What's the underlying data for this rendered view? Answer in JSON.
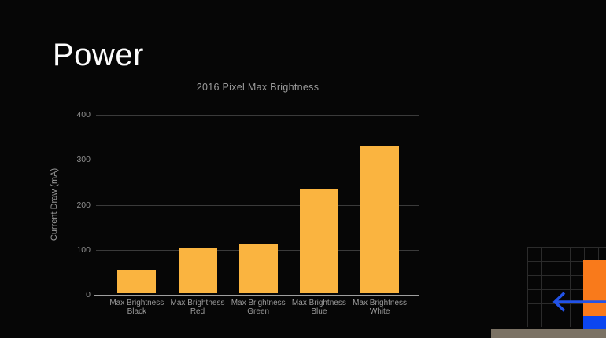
{
  "slide": {
    "title": "Power",
    "background_color": "#060606"
  },
  "chart_data": {
    "type": "bar",
    "title": "2016 Pixel Max Brightness",
    "xlabel": "",
    "ylabel": "Current Draw (mA)",
    "categories": [
      "Max Brightness\nBlack",
      "Max Brightness\nRed",
      "Max Brightness\nGreen",
      "Max Brightness\nBlue",
      "Max Brightness\nWhite"
    ],
    "values": [
      55,
      105,
      113,
      235,
      330
    ],
    "ylim": [
      0,
      400
    ],
    "yticks": [
      0,
      100,
      200,
      300,
      400
    ],
    "grid": true,
    "legend": false,
    "bar_color": "#FAB440",
    "gridline_color": "#3a3a3a",
    "axis_color": "#9e9e9e",
    "tick_label_color": "#8f8f8f"
  },
  "decorations": {
    "grid_pattern_color": "#2b2b2b",
    "orange_rect_color": "#F97A1B",
    "blue_rect_color": "#0B46F0",
    "left_arrow_color": "#2253E8",
    "bottom_bar_color": "#7B7264"
  }
}
